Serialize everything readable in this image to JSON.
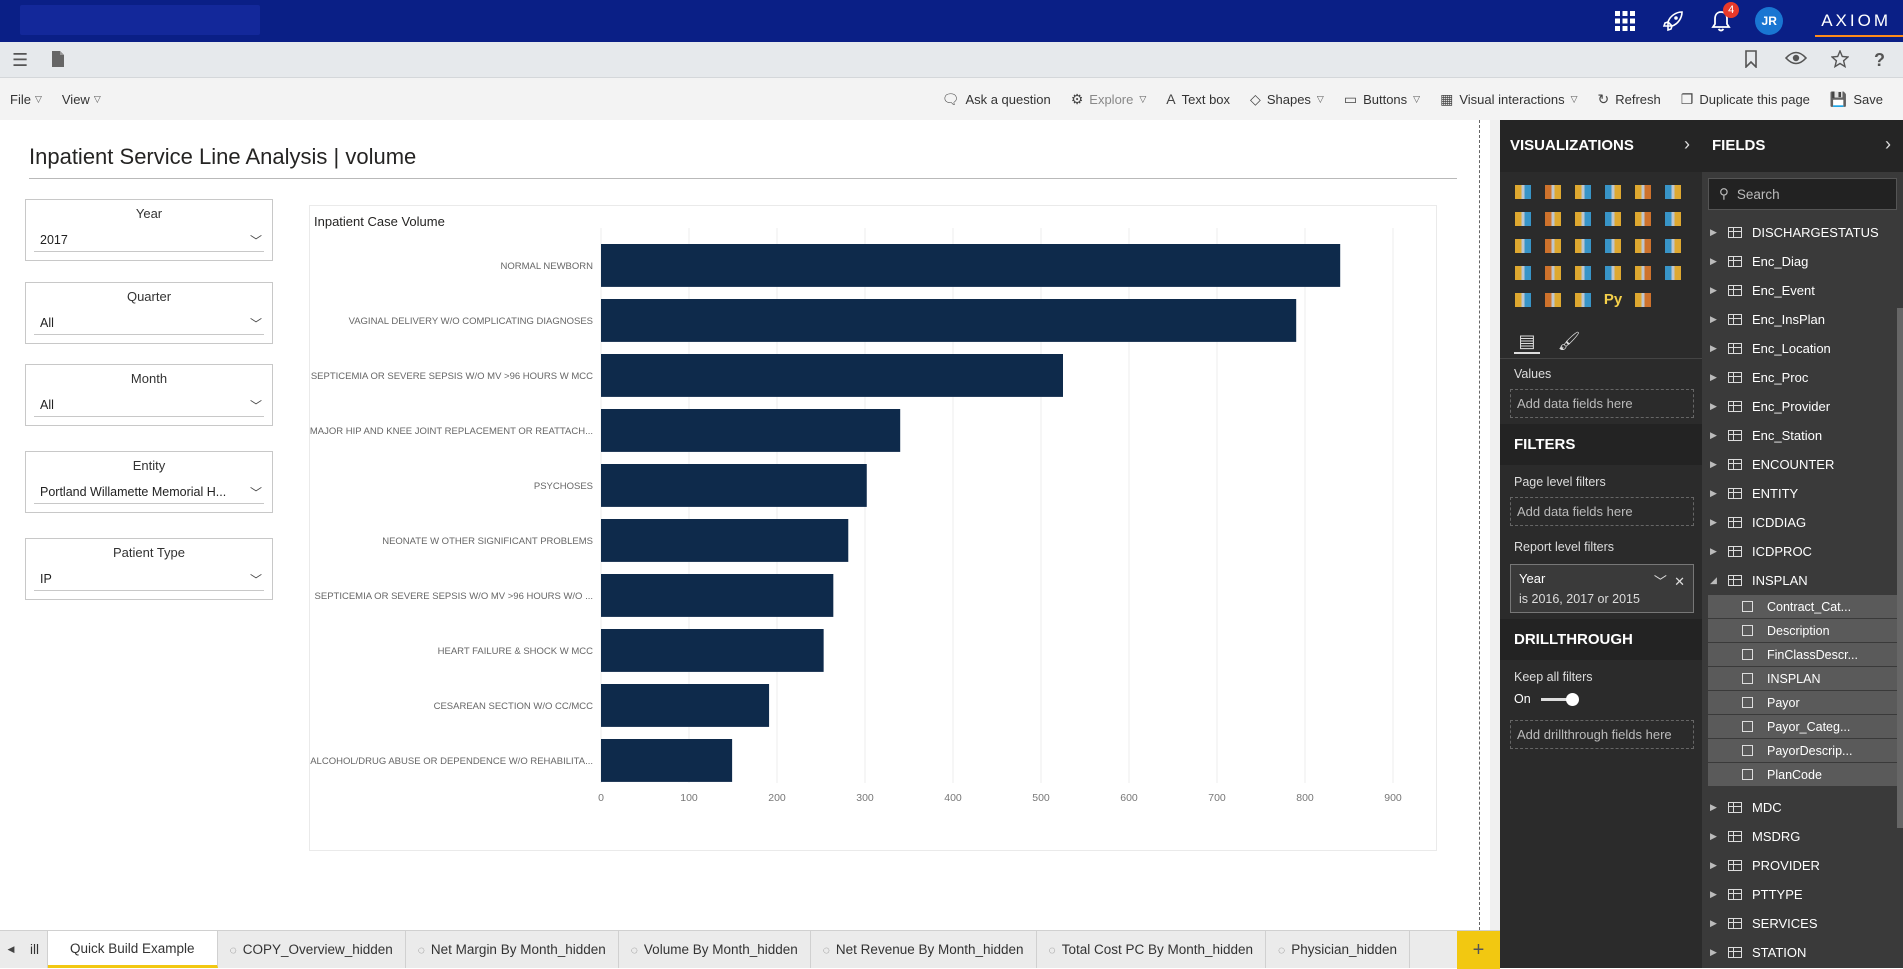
{
  "top_bar": {
    "notification_count": "4",
    "avatar_initials": "JR",
    "brand": "AXIOM"
  },
  "ribbon": {
    "file_label": "File",
    "view_label": "View",
    "tools": [
      {
        "label": "Ask a question",
        "icon": "chat-icon"
      },
      {
        "label": "Explore",
        "icon": "explore-icon"
      },
      {
        "label": "Text box",
        "icon": "text-box-icon"
      },
      {
        "label": "Shapes",
        "icon": "shapes-icon"
      },
      {
        "label": "Buttons",
        "icon": "buttons-icon"
      },
      {
        "label": "Visual interactions",
        "icon": "visual-interactions-icon"
      },
      {
        "label": "Refresh",
        "icon": "refresh-icon"
      },
      {
        "label": "Duplicate this page",
        "icon": "duplicate-icon"
      },
      {
        "label": "Save",
        "icon": "save-icon"
      }
    ]
  },
  "report": {
    "title": "Inpatient Service Line Analysis | volume",
    "slicers": [
      {
        "label": "Year",
        "value": "2017"
      },
      {
        "label": "Quarter",
        "value": "All"
      },
      {
        "label": "Month",
        "value": "All"
      },
      {
        "label": "Entity",
        "value": "Portland Willamette Memorial H..."
      },
      {
        "label": "Patient Type",
        "value": "IP"
      }
    ]
  },
  "chart_data": {
    "type": "bar",
    "orientation": "horizontal",
    "title": "Inpatient Case Volume",
    "categories": [
      "NORMAL NEWBORN",
      "VAGINAL DELIVERY W/O COMPLICATING DIAGNOSES",
      "SEPTICEMIA OR SEVERE SEPSIS W/O MV >96 HOURS W MCC",
      "MAJOR HIP AND KNEE JOINT REPLACEMENT OR REATTACH...",
      "PSYCHOSES",
      "NEONATE W OTHER SIGNIFICANT PROBLEMS",
      "SEPTICEMIA OR SEVERE SEPSIS W/O MV >96 HOURS W/O ...",
      "HEART FAILURE & SHOCK W MCC",
      "CESAREAN SECTION W/O CC/MCC",
      "ALCOHOL/DRUG ABUSE OR DEPENDENCE W/O REHABILITA..."
    ],
    "values": [
      840,
      790,
      525,
      340,
      302,
      281,
      264,
      253,
      191,
      149
    ],
    "xlim": [
      0,
      900
    ],
    "xticks": [
      "0",
      "100",
      "200",
      "300",
      "400",
      "500",
      "600",
      "700",
      "800",
      "900"
    ],
    "grid": true,
    "bar_color": "#0e2a4b"
  },
  "visualizations_panel": {
    "header": "VISUALIZATIONS",
    "values_label": "Values",
    "values_placeholder": "Add data fields here",
    "filters_header": "FILTERS",
    "page_filters_label": "Page level filters",
    "page_filters_placeholder": "Add data fields here",
    "report_filters_label": "Report level filters",
    "filter_card_field": "Year",
    "filter_card_condition": "is 2016, 2017 or 2015",
    "drillthrough_header": "DRILLTHROUGH",
    "keep_filters_label": "Keep all filters",
    "toggle_label": "On",
    "drillthrough_placeholder": "Add drillthrough fields here",
    "python_visual_label": "Py"
  },
  "fields_panel": {
    "header": "FIELDS",
    "search_placeholder": "Search",
    "tables_before": [
      "DISCHARGESTATUS",
      "Enc_Diag",
      "Enc_Event",
      "Enc_InsPlan",
      "Enc_Location",
      "Enc_Proc",
      "Enc_Provider",
      "Enc_Station",
      "ENCOUNTER",
      "ENTITY",
      "ICDDIAG",
      "ICDPROC"
    ],
    "expanded_table": "INSPLAN",
    "expanded_fields": [
      "Contract_Cat...",
      "Description",
      "FinClassDescr...",
      "INSPLAN",
      "Payor",
      "Payor_Categ...",
      "PayorDescrip...",
      "PlanCode"
    ],
    "tables_after": [
      "MDC",
      "MSDRG",
      "PROVIDER",
      "PTTYPE",
      "SERVICES",
      "STATION"
    ]
  },
  "page_tabs": {
    "partial_tab": "ill",
    "tabs": [
      "Quick Build Example",
      "COPY_Overview_hidden",
      "Net Margin By Month_hidden",
      "Volume By Month_hidden",
      "Net Revenue By Month_hidden",
      "Total Cost PC By Month_hidden",
      "Physician_hidden"
    ],
    "active_index": 0,
    "add_label": "+"
  }
}
